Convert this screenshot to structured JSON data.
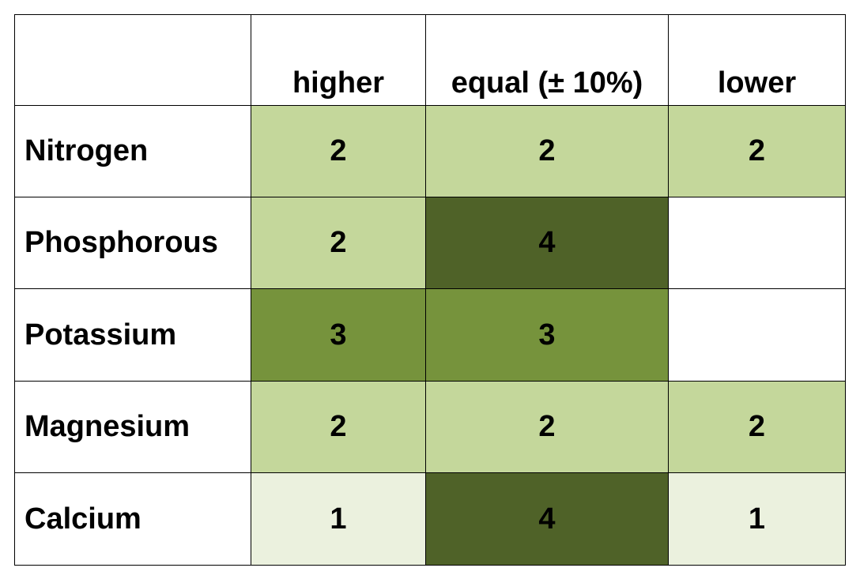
{
  "table": {
    "columns": [
      "higher",
      "equal (± 10%)",
      "lower"
    ],
    "rows": [
      {
        "label": "Nitrogen",
        "cells": [
          {
            "value": 2,
            "color": "#c4d79b"
          },
          {
            "value": 2,
            "color": "#c4d79b"
          },
          {
            "value": 2,
            "color": "#c4d79b"
          }
        ]
      },
      {
        "label": "Phosphorous",
        "cells": [
          {
            "value": 2,
            "color": "#c4d79b"
          },
          {
            "value": 4,
            "color": "#4f6228"
          },
          null
        ]
      },
      {
        "label": "Potassium",
        "cells": [
          {
            "value": 3,
            "color": "#76933c"
          },
          {
            "value": 3,
            "color": "#76933c"
          },
          null
        ]
      },
      {
        "label": "Magnesium",
        "cells": [
          {
            "value": 2,
            "color": "#c4d79b"
          },
          {
            "value": 2,
            "color": "#c4d79b"
          },
          {
            "value": 2,
            "color": "#c4d79b"
          }
        ]
      },
      {
        "label": "Calcium",
        "cells": [
          {
            "value": 1,
            "color": "#ebf1de"
          },
          {
            "value": 4,
            "color": "#4f6228"
          },
          {
            "value": 1,
            "color": "#ebf1de"
          }
        ]
      }
    ]
  }
}
